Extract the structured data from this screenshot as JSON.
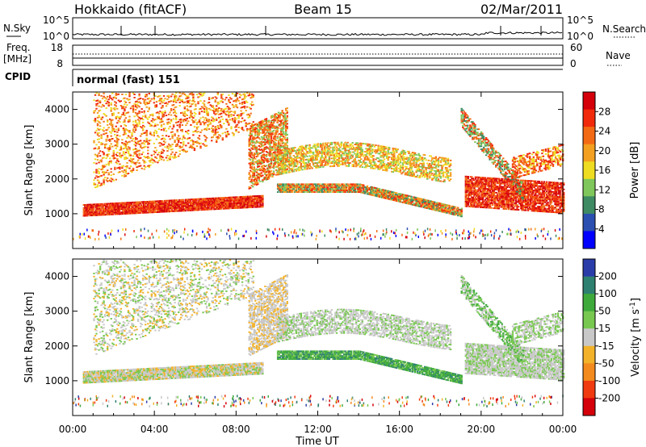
{
  "header": {
    "station": "Hokkaido (fitACF)",
    "beam": "Beam 15",
    "date": "02/Mar/2011"
  },
  "side_labels": {
    "nsky": "N.Sky",
    "freq": "Freq.",
    "freq_unit": "[MHz]",
    "cpid": "CPID",
    "nsearch": "N.Search",
    "nave": "Nave"
  },
  "cpid_text": "normal (fast) 151",
  "colors": {
    "power": [
      "#0000ff",
      "#2b4fb0",
      "#3e8a62",
      "#7fc75a",
      "#eedc22",
      "#f3a020",
      "#f36a14",
      "#f02a0a",
      "#d4000a"
    ],
    "velocity": [
      "#d4000a",
      "#f03a10",
      "#f38a1e",
      "#f2b22a",
      "#c8c8c8",
      "#78c850",
      "#3faa3c",
      "#2e8070",
      "#2a3ca8"
    ]
  },
  "chart_data": [
    {
      "type": "line",
      "title": "",
      "xlabel": "",
      "ylabel": "",
      "y_ticks_left": [
        "10^5",
        "10^0"
      ],
      "y_ticks_right": [
        "10^5",
        "10^0"
      ],
      "note": "Noise levels N.Sky (solid) and N.Search (dotted)"
    },
    {
      "type": "line",
      "xlabel": "",
      "y_ticks_left": [
        "18",
        "8"
      ],
      "y_ticks_right": [
        "60",
        "0"
      ],
      "note": "Frequency (solid) and Nave (dotted)"
    },
    {
      "type": "heatmap",
      "xlabel": "",
      "ylabel": "Slant Range [km]",
      "x_range_hours": [
        0,
        24
      ],
      "ylim": [
        0,
        4500
      ],
      "y_ticks": [
        "1000",
        "2000",
        "3000",
        "4000"
      ],
      "colorbar_label": "Power [dB]",
      "colorbar_ticks": [
        "4",
        "8",
        "12",
        "16",
        "20",
        "24",
        "28"
      ],
      "colorbar_range": [
        0,
        32
      ]
    },
    {
      "type": "heatmap",
      "xlabel": "Time UT",
      "ylabel": "Slant Range [km]",
      "x_ticks": [
        "00:00",
        "04:00",
        "08:00",
        "12:00",
        "16:00",
        "20:00",
        "00:00"
      ],
      "ylim": [
        0,
        4500
      ],
      "y_ticks": [
        "1000",
        "2000",
        "3000",
        "4000"
      ],
      "colorbar_label": "Velocity [m s",
      "colorbar_label_sup": "-1",
      "colorbar_ticks": [
        "200",
        "100",
        "50",
        "15",
        "-15",
        "-50",
        "-100",
        "-200"
      ]
    }
  ]
}
